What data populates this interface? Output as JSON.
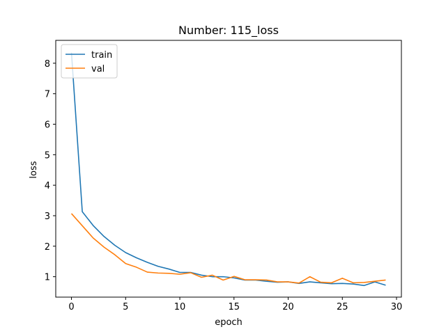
{
  "chart_data": {
    "type": "line",
    "title": "Number: 115_loss",
    "xlabel": "epoch",
    "ylabel": "loss",
    "xlim": [
      -1.45,
      30.45
    ],
    "ylim": [
      0.33,
      8.75
    ],
    "xticks": [
      0,
      5,
      10,
      15,
      20,
      25,
      30
    ],
    "yticks": [
      1,
      2,
      3,
      4,
      5,
      6,
      7,
      8
    ],
    "grid": false,
    "legend": "top-left",
    "x": [
      0,
      1,
      2,
      3,
      4,
      5,
      6,
      7,
      8,
      9,
      10,
      11,
      12,
      13,
      14,
      15,
      16,
      17,
      18,
      19,
      20,
      21,
      22,
      23,
      24,
      25,
      26,
      27,
      28,
      29
    ],
    "series": [
      {
        "name": "train",
        "color": "#1f77b4",
        "values": [
          8.35,
          3.13,
          2.68,
          2.32,
          2.03,
          1.79,
          1.62,
          1.47,
          1.34,
          1.25,
          1.14,
          1.14,
          1.05,
          1.0,
          1.0,
          0.96,
          0.89,
          0.89,
          0.85,
          0.82,
          0.83,
          0.78,
          0.83,
          0.8,
          0.77,
          0.78,
          0.76,
          0.71,
          0.83,
          0.72
        ]
      },
      {
        "name": "val",
        "color": "#ff7f0e",
        "values": [
          3.07,
          2.67,
          2.27,
          1.97,
          1.72,
          1.43,
          1.31,
          1.15,
          1.12,
          1.11,
          1.08,
          1.13,
          0.98,
          1.05,
          0.89,
          1.01,
          0.9,
          0.9,
          0.89,
          0.83,
          0.83,
          0.79,
          1.0,
          0.82,
          0.8,
          0.95,
          0.8,
          0.81,
          0.85,
          0.89
        ]
      }
    ]
  }
}
